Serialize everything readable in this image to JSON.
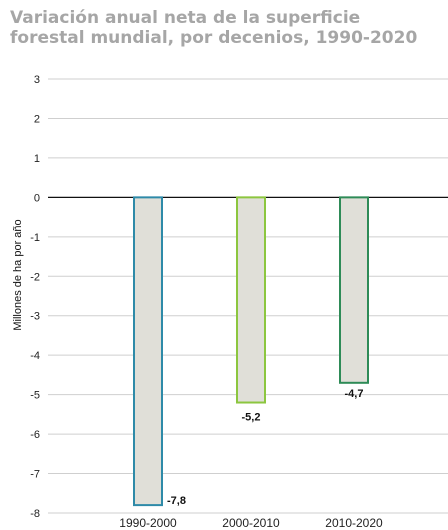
{
  "chart_data": {
    "type": "bar",
    "title": "Variación anual neta de la superficie forestal mundial, por decenios, 1990-2020",
    "ylabel": "Millones de ha por año",
    "xlabel": "",
    "categories": [
      "1990-2000",
      "2000-2010",
      "2010-2020"
    ],
    "values": [
      -7.8,
      -5.2,
      -4.7
    ],
    "value_labels": [
      "-7,8",
      "-5,2",
      "-4,7"
    ],
    "yticks": [
      3,
      2,
      1,
      0,
      -1,
      -2,
      -3,
      -4,
      -5,
      -6,
      -7,
      -8
    ],
    "ylim": [
      -8,
      3
    ],
    "grid": true,
    "bar_fill": "#e0dfd8",
    "bar_borders": [
      "#2e8aa8",
      "#8cc63f",
      "#2e8b57"
    ]
  }
}
